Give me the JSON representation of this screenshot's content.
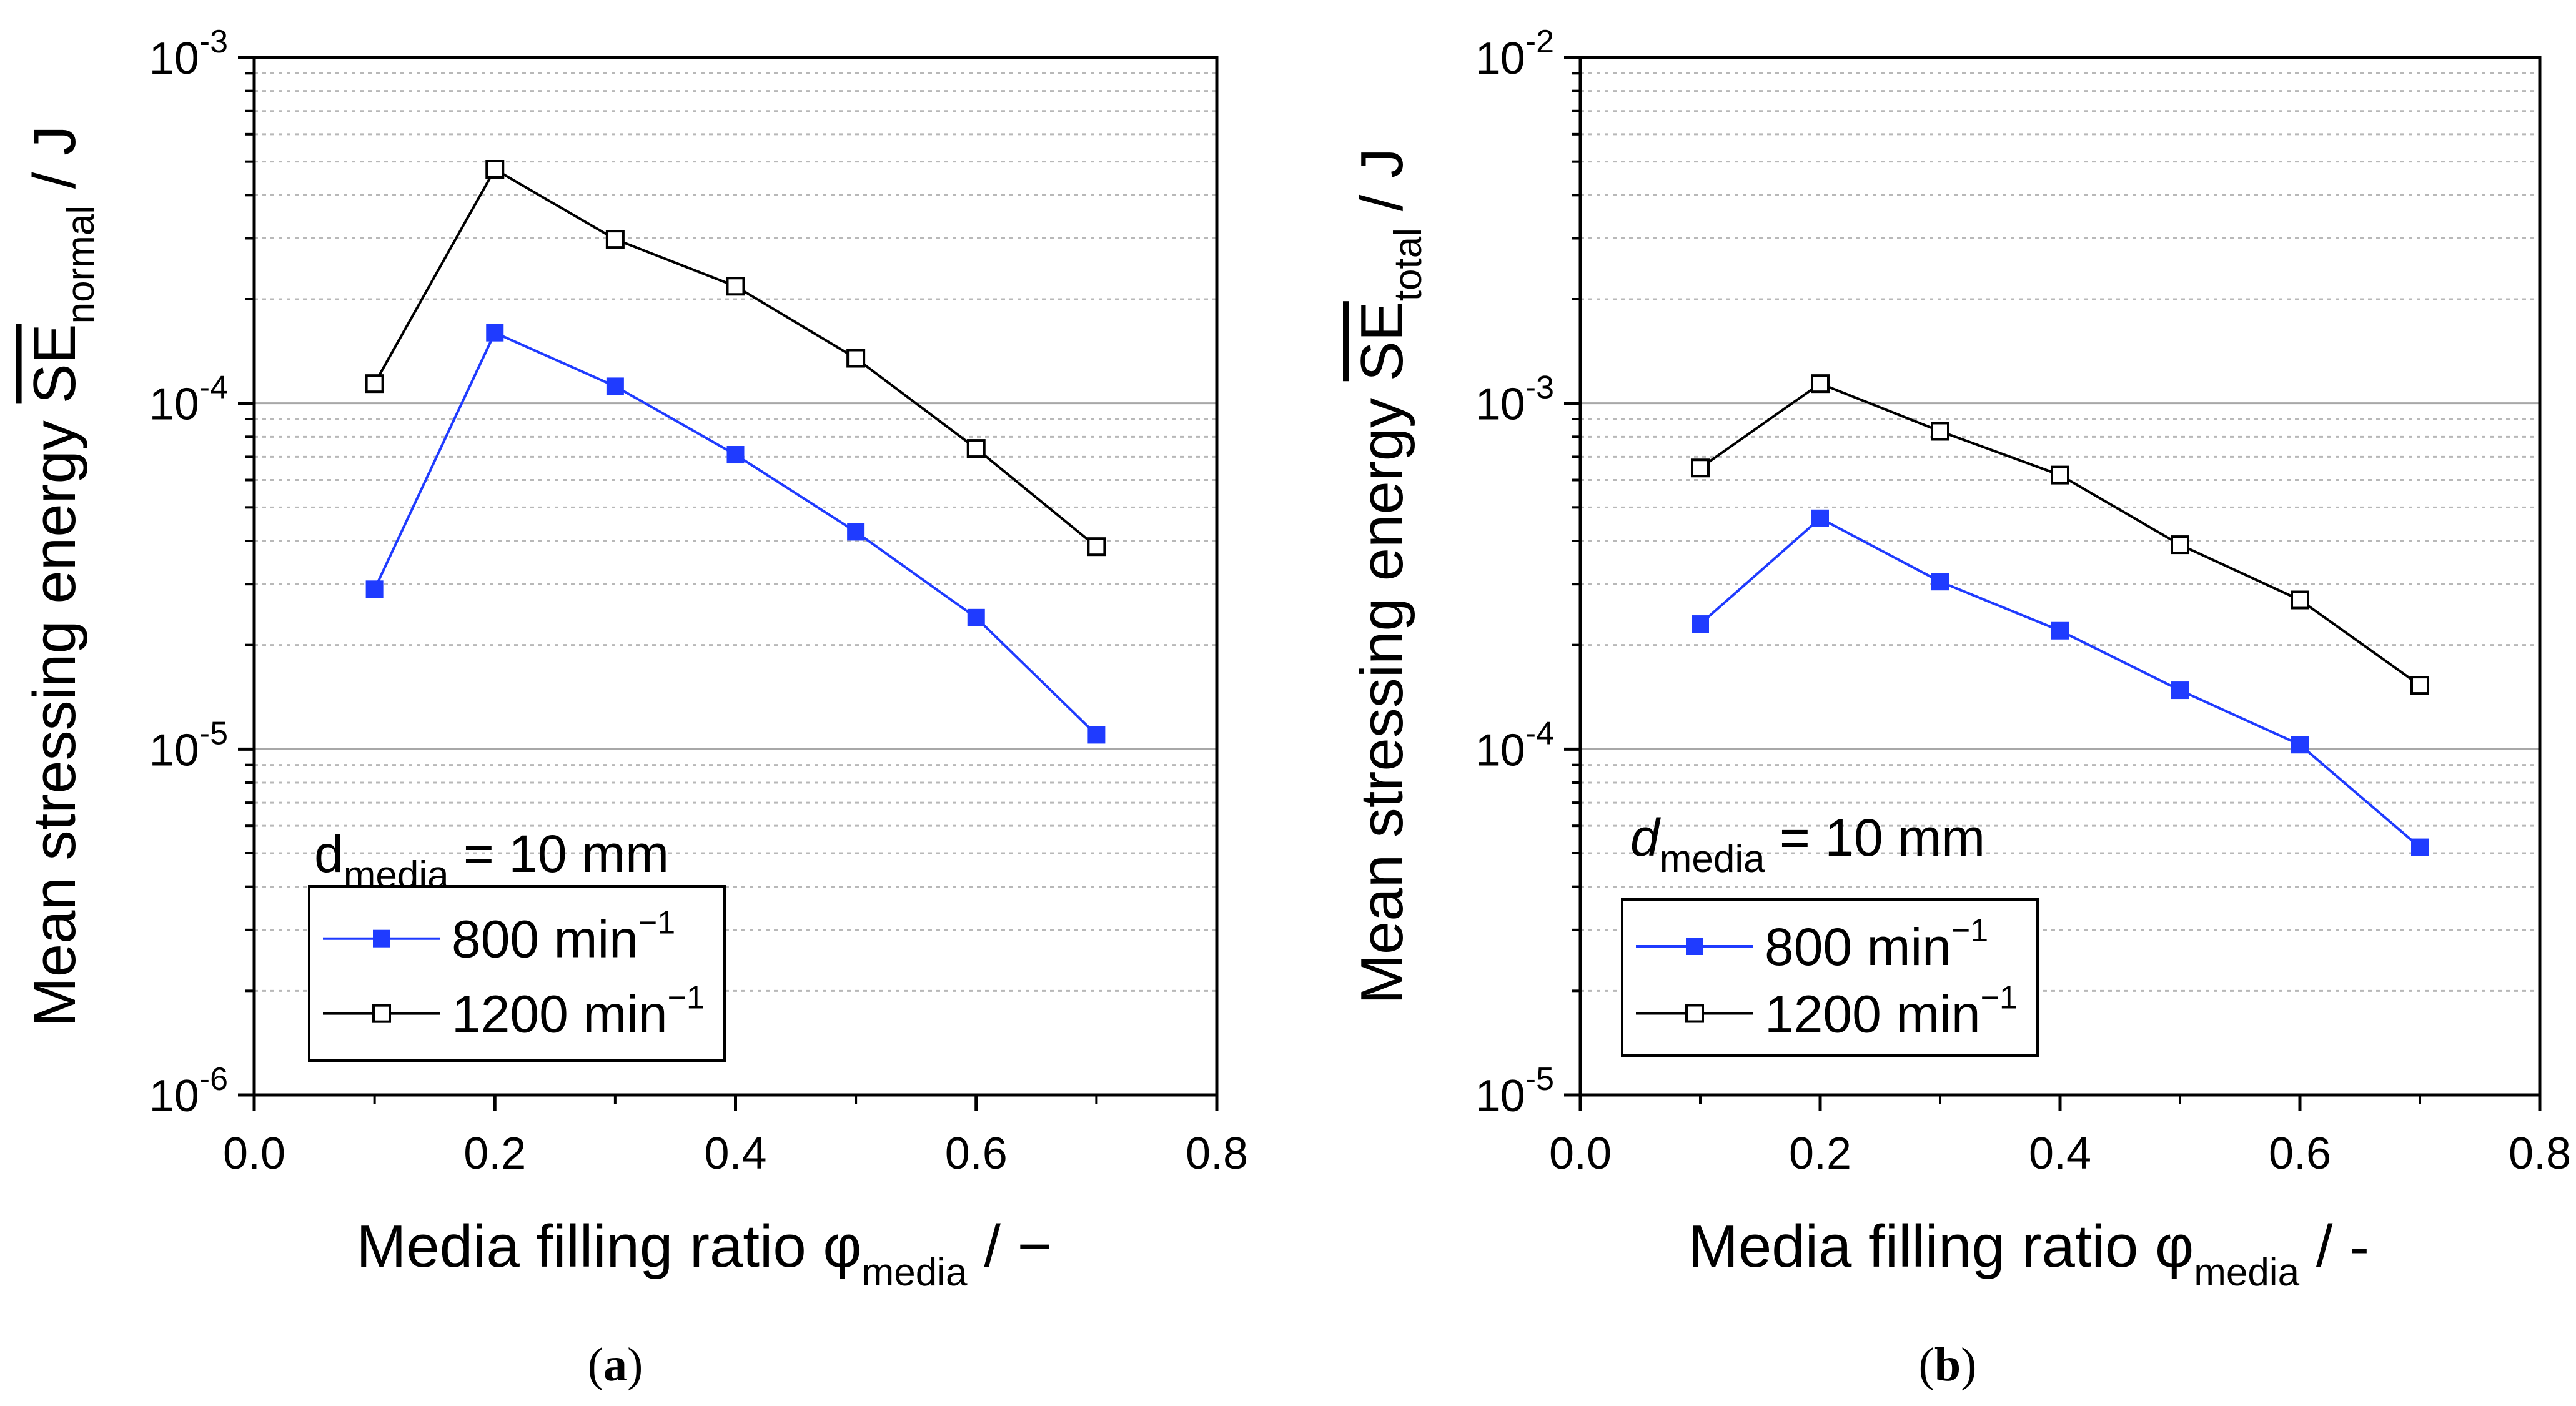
{
  "chart_data": [
    {
      "id": "a",
      "type": "line",
      "caption_letter": "a",
      "x": [
        0.1,
        0.2,
        0.3,
        0.4,
        0.5,
        0.6,
        0.7
      ],
      "series": [
        {
          "name": "800 min",
          "name_sup": "−1",
          "color": "#1f3bff",
          "marker": "filled-square",
          "values": [
            2.9e-05,
            0.00016,
            0.000112,
            7.1e-05,
            4.25e-05,
            2.4e-05,
            1.1e-05
          ]
        },
        {
          "name": "1200 min",
          "name_sup": "−1",
          "color": "#000000",
          "marker": "open-square",
          "values": [
            0.000114,
            0.000475,
            0.000298,
            0.000218,
            0.000135,
            7.4e-05,
            3.85e-05
          ]
        }
      ],
      "xlim": [
        0.0,
        0.8
      ],
      "xticks": [
        "0.0",
        "0.2",
        "0.4",
        "0.6",
        "0.8"
      ],
      "ylim_exp": [
        -6,
        -3
      ],
      "yticks": [
        {
          "base": "10",
          "exp": "-6"
        },
        {
          "base": "10",
          "exp": "-5"
        },
        {
          "base": "10",
          "exp": "-4"
        },
        {
          "base": "10",
          "exp": "-3"
        }
      ],
      "xlabel": {
        "main": "Media filling ratio φ",
        "sub": "media",
        "tail": " / −"
      },
      "ylabel": {
        "main": "Mean stressing energy ",
        "se": "SE",
        "sub": "normal",
        "tail": " / J"
      },
      "annotation": {
        "main": "d",
        "sub": "media",
        "tail": " = 10 mm"
      },
      "yscale": "log"
    },
    {
      "id": "b",
      "type": "line",
      "caption_letter": "b",
      "x": [
        0.1,
        0.2,
        0.3,
        0.4,
        0.5,
        0.6,
        0.7
      ],
      "series": [
        {
          "name": "800 min",
          "name_sup": "−1",
          "color": "#1f3bff",
          "marker": "filled-square",
          "values": [
            0.00023,
            0.000465,
            0.000305,
            0.00022,
            0.000148,
            0.000103,
            5.2e-05
          ]
        },
        {
          "name": "1200 min",
          "name_sup": "−1",
          "color": "#000000",
          "marker": "open-square",
          "values": [
            0.00065,
            0.00114,
            0.00083,
            0.00062,
            0.00039,
            0.00027,
            0.000153
          ]
        }
      ],
      "xlim": [
        0.0,
        0.8
      ],
      "xticks": [
        "0.0",
        "0.2",
        "0.4",
        "0.6",
        "0.8"
      ],
      "ylim_exp": [
        -5,
        -2
      ],
      "yticks": [
        {
          "base": "10",
          "exp": "-5"
        },
        {
          "base": "10",
          "exp": "-4"
        },
        {
          "base": "10",
          "exp": "-3"
        },
        {
          "base": "10",
          "exp": "-2"
        }
      ],
      "xlabel": {
        "main": "Media filling ratio φ",
        "sub": "media",
        "tail": " / -"
      },
      "ylabel": {
        "main": "Mean stressing energy ",
        "se": "SE",
        "sub": "total",
        "tail": " / J"
      },
      "annotation": {
        "main": "d",
        "sub": "media",
        "tail": " = 10 mm"
      },
      "yscale": "log"
    }
  ]
}
